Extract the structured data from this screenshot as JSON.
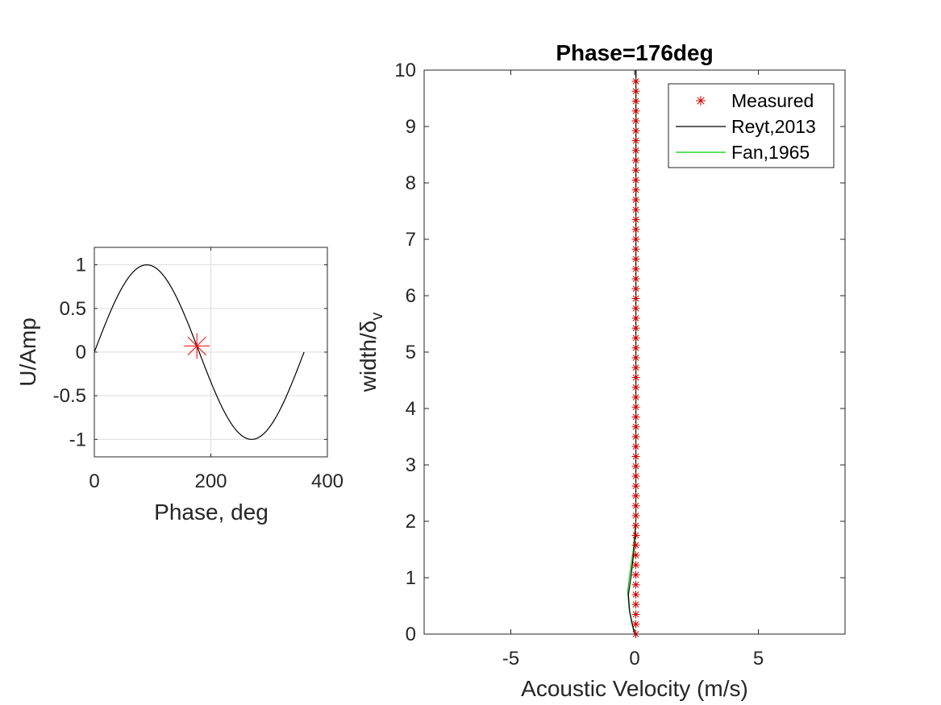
{
  "chart_data": [
    {
      "type": "line",
      "title": "",
      "xlabel": "Phase, deg",
      "ylabel": "U/Amp",
      "xlim": [
        0,
        400
      ],
      "ylim": [
        -1.2,
        1.2
      ],
      "xticks": [
        "0",
        "200",
        "400"
      ],
      "yticks": [
        "-1",
        "-0.5",
        "0",
        "0.5",
        "1"
      ],
      "grid": true,
      "series": [
        {
          "type": "line",
          "function": "sin(phase)",
          "x_range": [
            0,
            360
          ],
          "color": "#000000"
        },
        {
          "type": "marker",
          "marker": "asterisk",
          "x": [
            176
          ],
          "y": [
            0.07
          ],
          "color": "#ff0000"
        }
      ]
    },
    {
      "type": "scatter",
      "title": "Phase=176deg",
      "xlabel": "Acoustic Velocity (m/s)",
      "ylabel": "width/",
      "ylabel_symbol": "δ",
      "ylabel_subscript": "v",
      "xlim": [
        -8.5,
        8.5
      ],
      "ylim": [
        0,
        10
      ],
      "xticks": [
        "-5",
        "0",
        "5"
      ],
      "yticks": [
        "0",
        "1",
        "2",
        "3",
        "4",
        "5",
        "6",
        "7",
        "8",
        "9",
        "10"
      ],
      "grid": false,
      "legend_position": "top-right",
      "series": [
        {
          "name": "Measured",
          "marker": "asterisk",
          "color": "#cc0000",
          "x_value": 0.05,
          "y": [
            0,
            0.175,
            0.35,
            0.525,
            0.7,
            0.875,
            1.05,
            1.225,
            1.4,
            1.575,
            1.75,
            1.925,
            2.1,
            2.275,
            2.45,
            2.625,
            2.8,
            2.975,
            3.15,
            3.325,
            3.5,
            3.675,
            3.85,
            4.025,
            4.2,
            4.375,
            4.55,
            4.725,
            4.9,
            5.075,
            5.25,
            5.425,
            5.6,
            5.775,
            5.95,
            6.125,
            6.3,
            6.475,
            6.65,
            6.825,
            7.0,
            7.175,
            7.35,
            7.525,
            7.7,
            7.875,
            8.05,
            8.225,
            8.4,
            8.575,
            8.75,
            8.925,
            9.1,
            9.275,
            9.45,
            9.625,
            9.8
          ]
        },
        {
          "name": "Reyt,2013",
          "color": "#000000",
          "points": [
            [
              0.0,
              0
            ],
            [
              -0.1,
              0.2
            ],
            [
              -0.2,
              0.4
            ],
            [
              -0.25,
              0.7
            ],
            [
              -0.15,
              1.0
            ],
            [
              -0.02,
              1.5
            ],
            [
              0.05,
              2.0
            ],
            [
              0.05,
              10
            ]
          ]
        },
        {
          "name": "Fan,1965",
          "color": "#00cc00",
          "points": [
            [
              0.0,
              0
            ],
            [
              -0.12,
              0.2
            ],
            [
              -0.22,
              0.45
            ],
            [
              -0.28,
              0.75
            ],
            [
              -0.2,
              1.05
            ],
            [
              -0.05,
              1.5
            ],
            [
              0.05,
              2.0
            ],
            [
              0.06,
              10
            ]
          ]
        }
      ]
    }
  ]
}
